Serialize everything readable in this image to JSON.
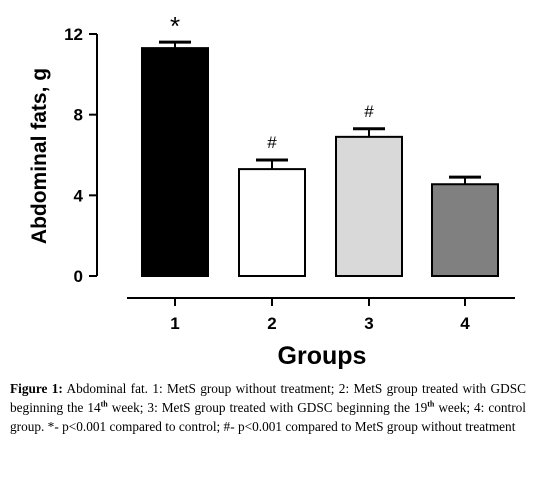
{
  "chart_data": {
    "type": "bar",
    "categories": [
      "1",
      "2",
      "3",
      "4"
    ],
    "values": [
      11.3,
      5.3,
      6.9,
      4.55
    ],
    "errors": [
      0.3,
      0.45,
      0.4,
      0.35
    ],
    "significance": [
      "*",
      "#",
      "#",
      ""
    ],
    "colors": [
      "#000000",
      "#ffffff",
      "#d9d9d9",
      "#808080"
    ],
    "title": "",
    "xlabel": "Groups",
    "ylabel": "Abdominal fats, g",
    "ylim": [
      0,
      12
    ],
    "yticks": [
      "0",
      "4",
      "8",
      "12"
    ],
    "grid": false
  },
  "caption": {
    "label": "Figure 1:",
    "part1": " Abdominal fat. 1: MetS group without treatment; 2: MetS group treated with GDSC beginning the 14",
    "sup1": "th",
    "part2": " week; 3: MetS group treated with GDSC beginning the 19",
    "sup2": "th",
    "part3": " week; 4: control group. *- p<0.001 compared to control; #- p<0.001 compared to MetS group without treatment"
  }
}
